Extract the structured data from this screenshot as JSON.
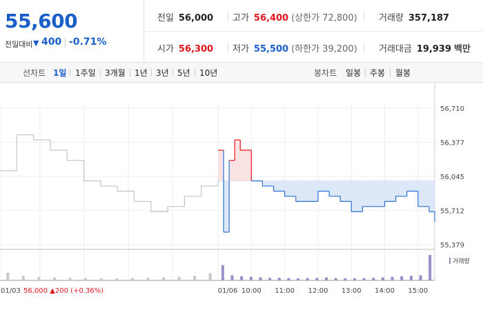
{
  "quote": {
    "price": "55,600",
    "change_label": "전일대비",
    "change_arrow": "▼",
    "change_abs": "400",
    "change_pct": "-0.71%",
    "prev_close": {
      "label": "전일",
      "value": "56,000"
    },
    "high": {
      "label": "고가",
      "value": "56,400",
      "sub": "(상한가 72,800)"
    },
    "volume": {
      "label": "거래량",
      "value": "357,187"
    },
    "open": {
      "label": "시가",
      "value": "56,300"
    },
    "low": {
      "label": "저가",
      "value": "55,500",
      "sub": "(하한가 39,200)"
    },
    "trade_value": {
      "label": "거래대금",
      "value": "19,939",
      "unit": "백만"
    }
  },
  "toolbar": {
    "line_label": "선차트",
    "periods": [
      "1일",
      "1주일",
      "3개월",
      "1년",
      "3년",
      "5년",
      "10년"
    ],
    "active_period": "1일",
    "candle_label": "봉차트",
    "candles": [
      "일봉",
      "주봉",
      "월봉"
    ]
  },
  "chart_data": {
    "type": "line",
    "y_ticks": [
      "56,710",
      "56,377",
      "56,045",
      "55,712",
      "55,379"
    ],
    "ylim": [
      55379,
      56710
    ],
    "prev_close": 56000,
    "volume_legend": "거래량",
    "x_labels": [
      "01/03",
      "01/06",
      "10:00",
      "11:00",
      "12:00",
      "13:00",
      "14:00",
      "15:00"
    ],
    "prev_day_summary": {
      "date": "01/03",
      "close": "56,000",
      "arrow": "▲",
      "change": "200",
      "pct": "(+0.36%)"
    },
    "previous_day": {
      "times": [
        "09:00",
        "09:30",
        "10:00",
        "10:30",
        "11:00",
        "11:30",
        "12:00",
        "12:30",
        "13:00",
        "13:30",
        "14:00",
        "14:30",
        "15:00",
        "15:30"
      ],
      "values": [
        56100,
        56450,
        56400,
        56300,
        56200,
        56000,
        55950,
        55900,
        55800,
        55700,
        55750,
        55850,
        55950,
        56000
      ]
    },
    "today": {
      "times": [
        "09:00",
        "09:10",
        "09:20",
        "09:30",
        "09:40",
        "10:00",
        "10:20",
        "10:40",
        "11:00",
        "11:20",
        "11:40",
        "12:00",
        "12:20",
        "12:40",
        "13:00",
        "13:20",
        "13:40",
        "14:00",
        "14:20",
        "14:40",
        "15:00",
        "15:20",
        "15:30"
      ],
      "values": [
        56300,
        55500,
        56200,
        56400,
        56300,
        56000,
        55950,
        55900,
        55850,
        55800,
        55800,
        55900,
        55850,
        55800,
        55700,
        55750,
        55750,
        55800,
        55850,
        55900,
        55750,
        55700,
        55600
      ]
    },
    "volume": {
      "previous_day": [
        30,
        18,
        14,
        12,
        10,
        9,
        8,
        8,
        9,
        10,
        12,
        14,
        18,
        28
      ],
      "today": [
        60,
        20,
        16,
        14,
        12,
        10,
        10,
        9,
        8,
        9,
        10,
        12,
        9,
        8,
        8,
        9,
        10,
        12,
        14,
        16,
        18,
        20,
        100
      ]
    }
  }
}
